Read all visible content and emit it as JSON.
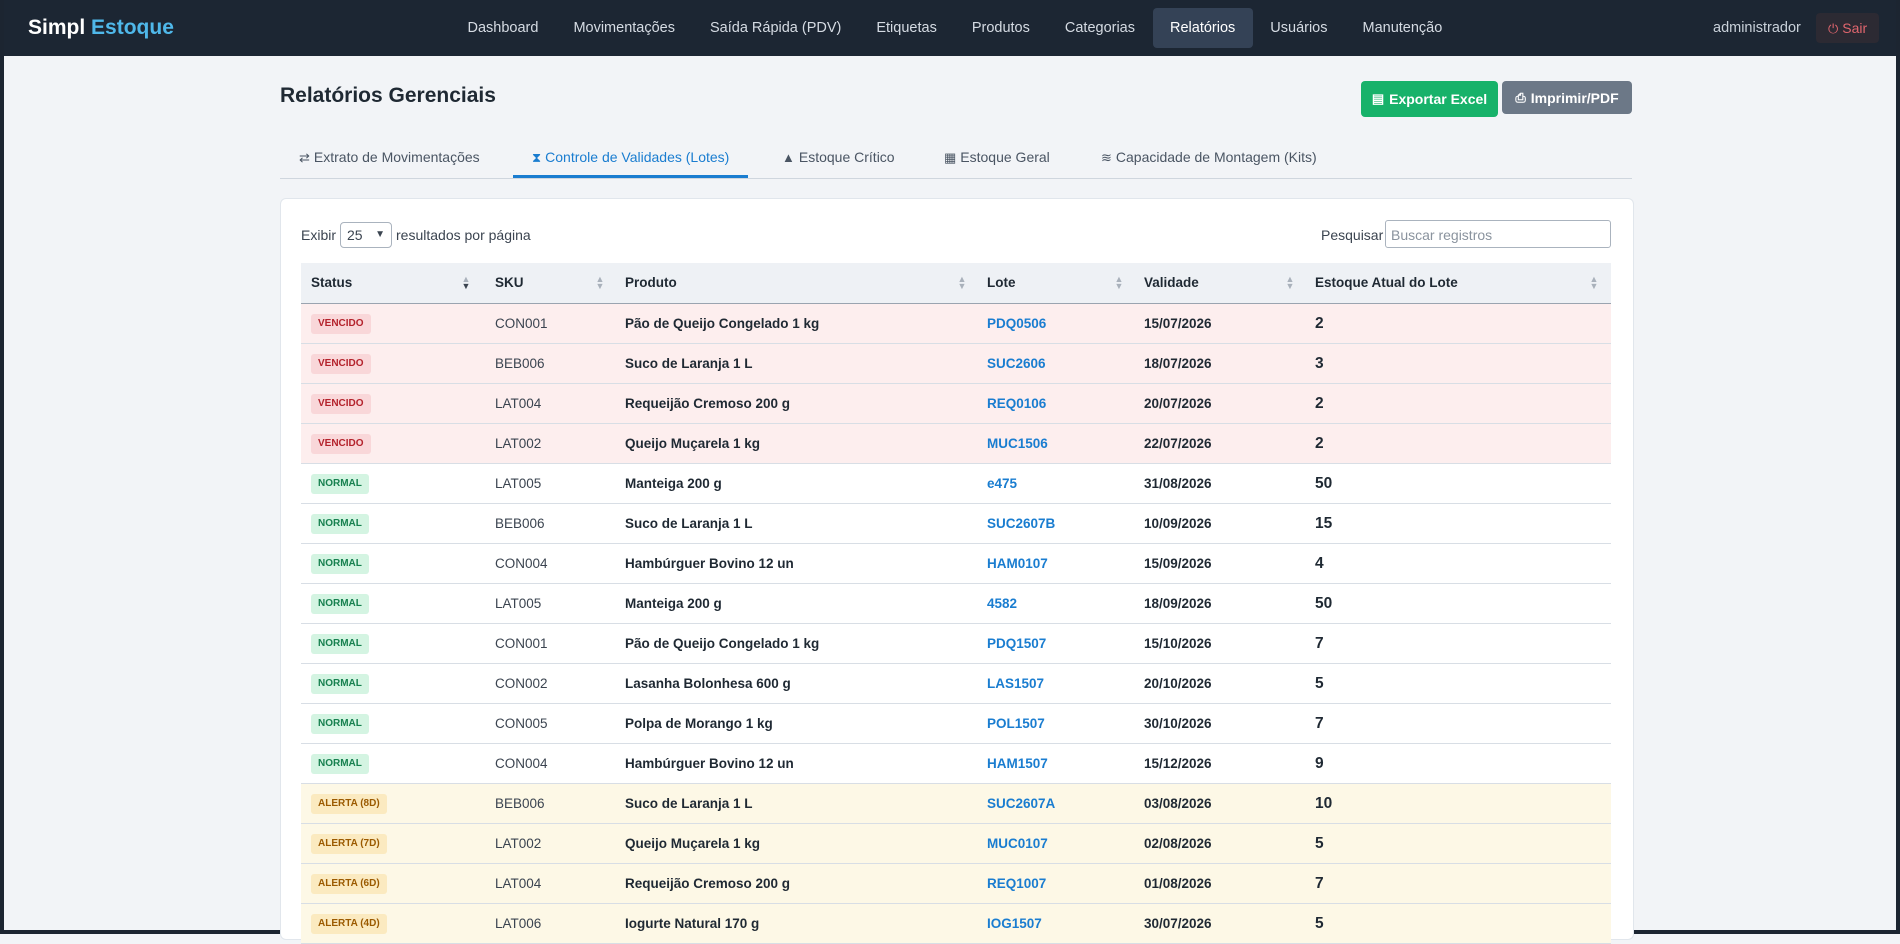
{
  "app": {
    "brand_part1": "Simpl",
    "brand_part2": "Estoque",
    "accent_color": "#4fb8ea"
  },
  "nav": {
    "items": [
      {
        "label": "Dashboard"
      },
      {
        "label": "Movimentações"
      },
      {
        "label": "Saída Rápida (PDV)"
      },
      {
        "label": "Etiquetas"
      },
      {
        "label": "Produtos"
      },
      {
        "label": "Categorias"
      },
      {
        "label": "Relatórios",
        "active": true
      },
      {
        "label": "Usuários"
      },
      {
        "label": "Manutenção"
      }
    ],
    "user": "administrador",
    "logout_label": "Sair",
    "logout_icon": "power-icon"
  },
  "header": {
    "title": "Relatórios Gerenciais",
    "export_label": "Exportar Excel",
    "export_icon": "file-excel-icon",
    "export_color": "#17b26a",
    "print_label": "Imprimir/PDF",
    "print_icon": "printer-icon"
  },
  "tabs": [
    {
      "label": "Extrato de Movimentações",
      "icon": "exchange-icon",
      "glyph": "⇄"
    },
    {
      "label": "Controle de Validades (Lotes)",
      "icon": "hourglass-icon",
      "glyph": "⧗",
      "active": true
    },
    {
      "label": "Estoque Crítico",
      "icon": "warning-icon",
      "glyph": "▲"
    },
    {
      "label": "Estoque Geral",
      "icon": "boxes-icon",
      "glyph": "▦"
    },
    {
      "label": "Capacidade de Montagem (Kits)",
      "icon": "layers-icon",
      "glyph": "≋"
    }
  ],
  "table_controls": {
    "show_label": "Exibir",
    "page_size": "25",
    "per_page_label": "resultados por página",
    "search_label": "Pesquisar",
    "search_placeholder": "Buscar registros"
  },
  "table": {
    "columns": [
      "Status",
      "SKU",
      "Produto",
      "Lote",
      "Validade",
      "Estoque Atual do Lote"
    ],
    "sorted_column": "Status",
    "rows": [
      {
        "status": "VENCIDO",
        "type": "vencido",
        "sku": "CON001",
        "produto": "Pão de Queijo Congelado 1 kg",
        "lote": "PDQ0506",
        "validade": "15/07/2026",
        "estoque": "2"
      },
      {
        "status": "VENCIDO",
        "type": "vencido",
        "sku": "BEB006",
        "produto": "Suco de Laranja 1 L",
        "lote": "SUC2606",
        "validade": "18/07/2026",
        "estoque": "3"
      },
      {
        "status": "VENCIDO",
        "type": "vencido",
        "sku": "LAT004",
        "produto": "Requeijão Cremoso 200 g",
        "lote": "REQ0106",
        "validade": "20/07/2026",
        "estoque": "2"
      },
      {
        "status": "VENCIDO",
        "type": "vencido",
        "sku": "LAT002",
        "produto": "Queijo Muçarela 1 kg",
        "lote": "MUC1506",
        "validade": "22/07/2026",
        "estoque": "2"
      },
      {
        "status": "NORMAL",
        "type": "normal",
        "sku": "LAT005",
        "produto": "Manteiga 200 g",
        "lote": "e475",
        "validade": "31/08/2026",
        "estoque": "50"
      },
      {
        "status": "NORMAL",
        "type": "normal",
        "sku": "BEB006",
        "produto": "Suco de Laranja 1 L",
        "lote": "SUC2607B",
        "validade": "10/09/2026",
        "estoque": "15"
      },
      {
        "status": "NORMAL",
        "type": "normal",
        "sku": "CON004",
        "produto": "Hambúrguer Bovino 12 un",
        "lote": "HAM0107",
        "validade": "15/09/2026",
        "estoque": "4"
      },
      {
        "status": "NORMAL",
        "type": "normal",
        "sku": "LAT005",
        "produto": "Manteiga 200 g",
        "lote": "4582",
        "validade": "18/09/2026",
        "estoque": "50"
      },
      {
        "status": "NORMAL",
        "type": "normal",
        "sku": "CON001",
        "produto": "Pão de Queijo Congelado 1 kg",
        "lote": "PDQ1507",
        "validade": "15/10/2026",
        "estoque": "7"
      },
      {
        "status": "NORMAL",
        "type": "normal",
        "sku": "CON002",
        "produto": "Lasanha Bolonhesa 600 g",
        "lote": "LAS1507",
        "validade": "20/10/2026",
        "estoque": "5"
      },
      {
        "status": "NORMAL",
        "type": "normal",
        "sku": "CON005",
        "produto": "Polpa de Morango 1 kg",
        "lote": "POL1507",
        "validade": "30/10/2026",
        "estoque": "7"
      },
      {
        "status": "NORMAL",
        "type": "normal",
        "sku": "CON004",
        "produto": "Hambúrguer Bovino 12 un",
        "lote": "HAM1507",
        "validade": "15/12/2026",
        "estoque": "9"
      },
      {
        "status": "ALERTA (8D)",
        "type": "alerta",
        "sku": "BEB006",
        "produto": "Suco de Laranja 1 L",
        "lote": "SUC2607A",
        "validade": "03/08/2026",
        "estoque": "10"
      },
      {
        "status": "ALERTA (7D)",
        "type": "alerta",
        "sku": "LAT002",
        "produto": "Queijo Muçarela 1 kg",
        "lote": "MUC0107",
        "validade": "02/08/2026",
        "estoque": "5"
      },
      {
        "status": "ALERTA (6D)",
        "type": "alerta",
        "sku": "LAT004",
        "produto": "Requeijão Cremoso 200 g",
        "lote": "REQ1007",
        "validade": "01/08/2026",
        "estoque": "7"
      },
      {
        "status": "ALERTA (4D)",
        "type": "alerta",
        "sku": "LAT006",
        "produto": "Iogurte Natural 170 g",
        "lote": "IOG1507",
        "validade": "30/07/2026",
        "estoque": "5"
      }
    ]
  }
}
